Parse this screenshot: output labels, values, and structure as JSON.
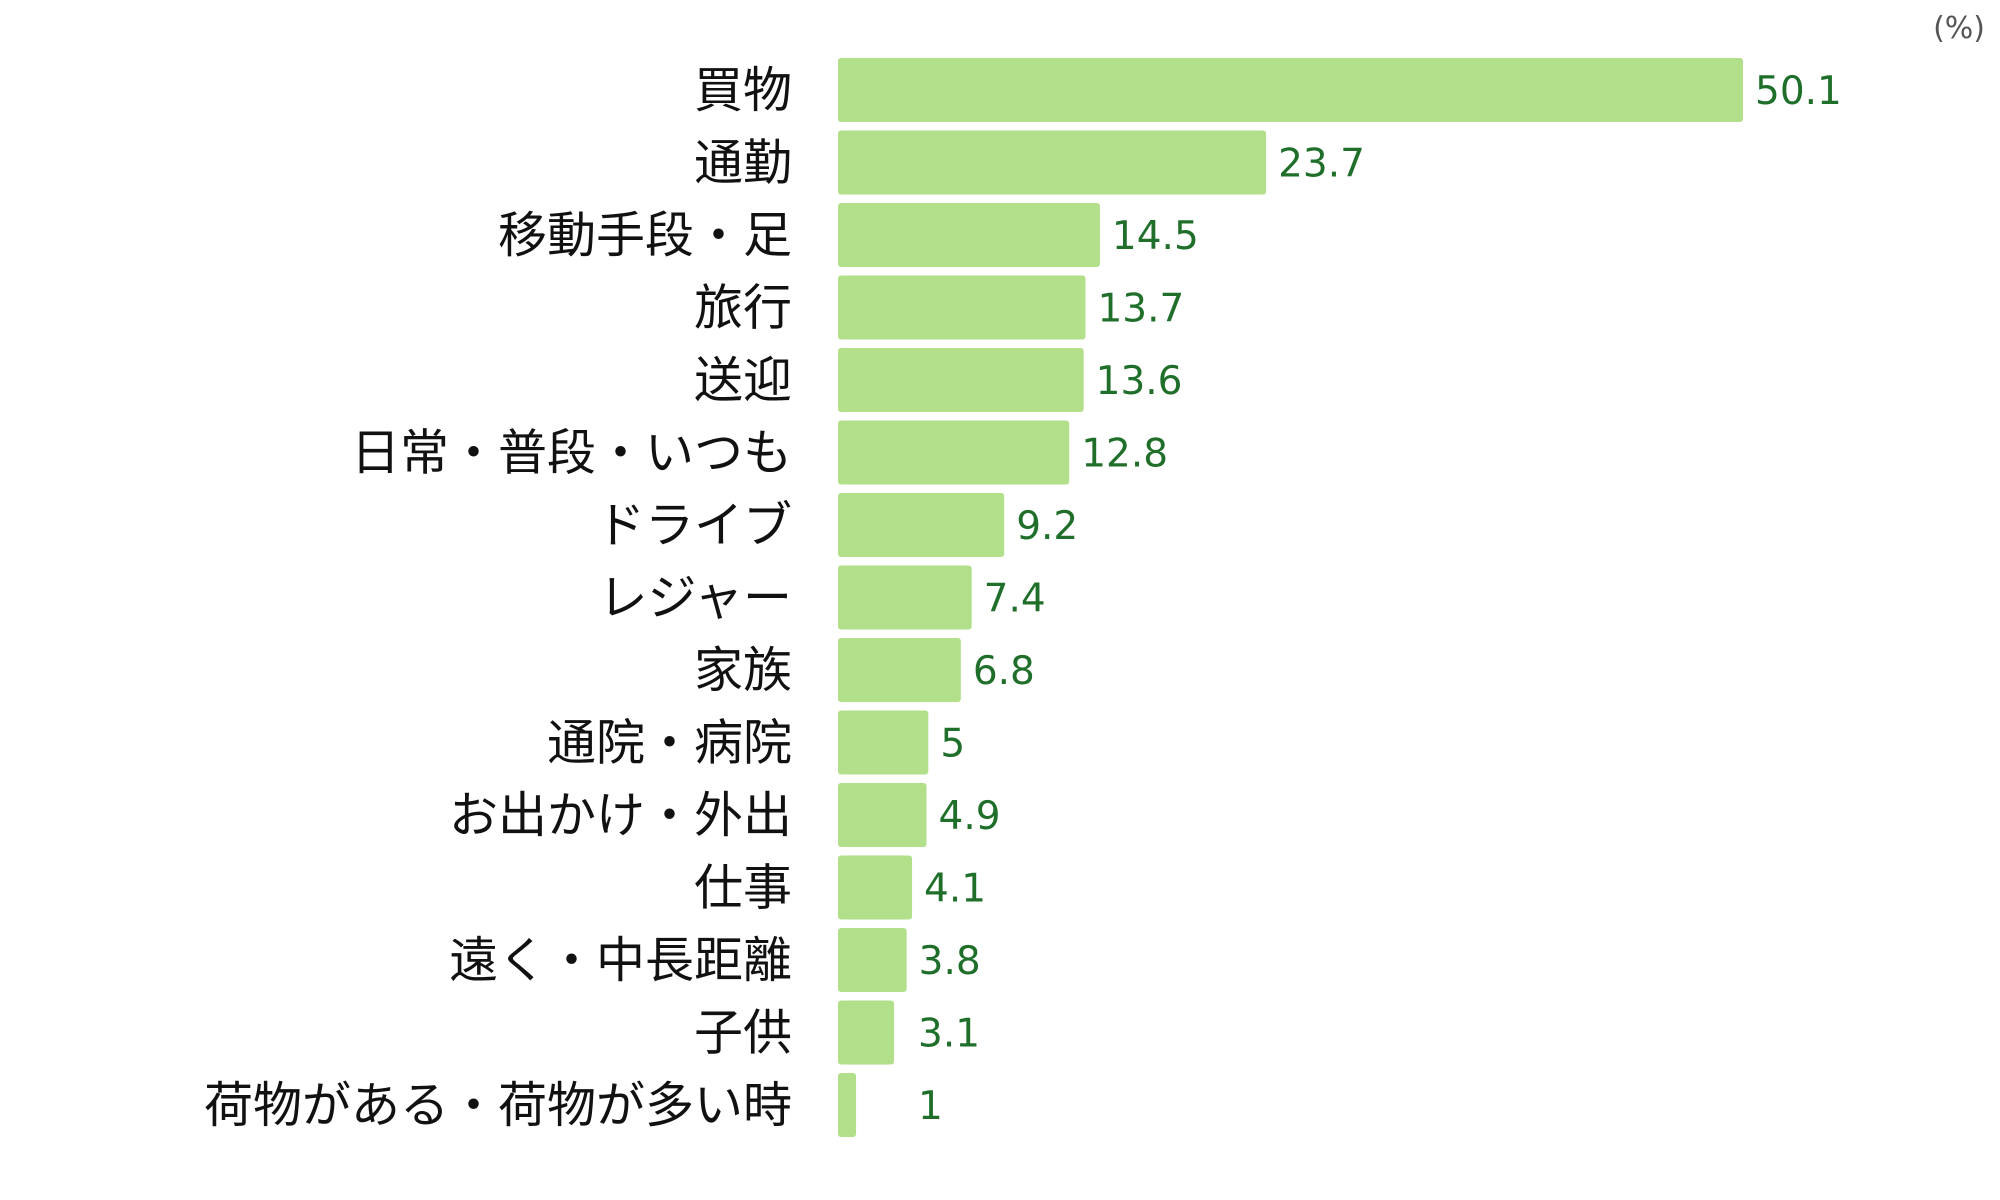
{
  "chart_data": {
    "type": "bar",
    "orientation": "horizontal",
    "unit_label": "(%)",
    "categories": [
      "買物",
      "通勤",
      "移動手段・足",
      "旅行",
      "送迎",
      "日常・普段・いつも",
      "ドライブ",
      "レジャー",
      "家族",
      "通院・病院",
      "お出かけ・外出",
      "仕事",
      "遠く・中長距離",
      "子供",
      "荷物がある・荷物が多い時"
    ],
    "values": [
      50.1,
      23.7,
      14.5,
      13.7,
      13.6,
      12.8,
      9.2,
      7.4,
      6.8,
      5,
      4.9,
      4.1,
      3.8,
      3.1,
      1
    ],
    "value_labels": [
      "50.1",
      "23.7",
      "14.5",
      "13.7",
      "13.6",
      "12.8",
      "9.2",
      "7.4",
      "6.8",
      "5",
      "4.9",
      "4.1",
      "3.8",
      "3.1",
      "1"
    ],
    "colors": {
      "bar": "#b2df8a",
      "value_label": "#1f6f2a",
      "category_label": "#111111",
      "unit_label": "#555555"
    }
  }
}
